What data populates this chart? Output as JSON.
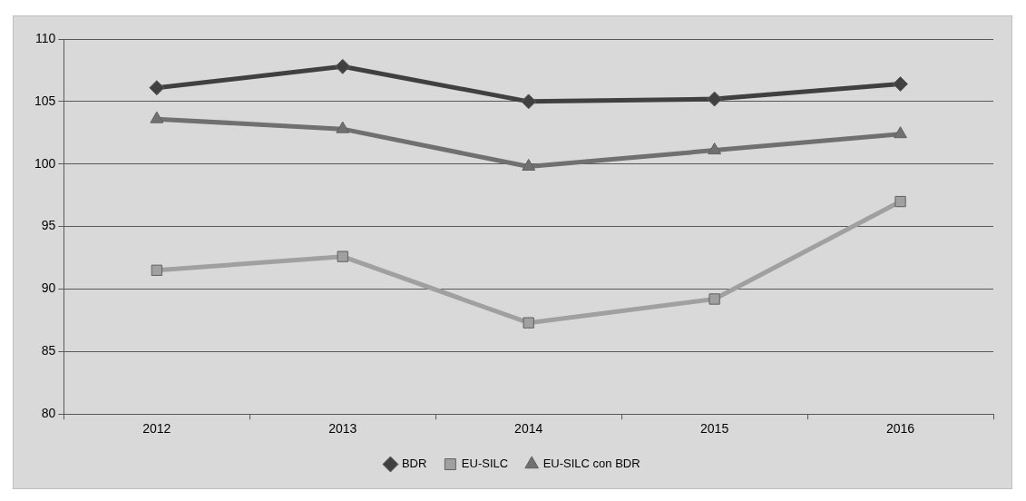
{
  "chart_data": {
    "type": "line",
    "categories": [
      "2012",
      "2013",
      "2014",
      "2015",
      "2016"
    ],
    "series": [
      {
        "name": "BDR",
        "color": "#404040",
        "marker": "diamond",
        "values": [
          106.1,
          107.8,
          105.0,
          105.2,
          106.4
        ]
      },
      {
        "name": "EU-SILC",
        "color": "#a0a0a0",
        "marker": "square",
        "values": [
          91.5,
          92.6,
          87.3,
          89.2,
          97.0
        ]
      },
      {
        "name": "EU-SILC con BDR",
        "color": "#707070",
        "marker": "triangle",
        "values": [
          103.6,
          102.8,
          99.8,
          101.1,
          102.4
        ]
      }
    ],
    "ylim": [
      80,
      110
    ],
    "yticks": [
      80,
      85,
      90,
      95,
      100,
      105,
      110
    ],
    "grid": "y",
    "legend": "bottom",
    "line_style": "solid"
  }
}
